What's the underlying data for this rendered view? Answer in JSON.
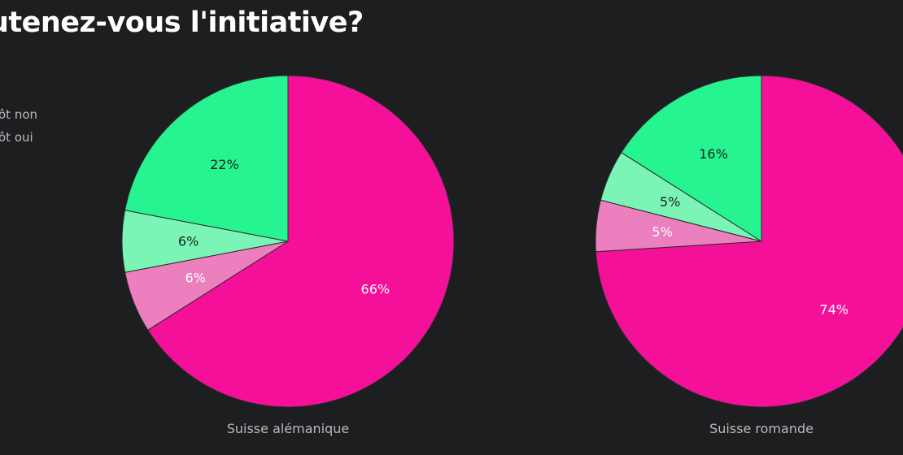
{
  "title": "utenez-vous l'initiative?",
  "legend": [
    {
      "label": "ôt non"
    },
    {
      "label": "ôt oui"
    }
  ],
  "colors": {
    "oui": "#f5109a",
    "plutot_oui": "#ec7fbd",
    "plutot_non": "#7af5b6",
    "non": "#26f491"
  },
  "chart_data": [
    {
      "type": "pie",
      "title": "Suisse alémanique",
      "slices": [
        {
          "value": 66,
          "label": "66%",
          "color": "#f5109a",
          "text_color": "#ffffff"
        },
        {
          "value": 6,
          "label": "6%",
          "color": "#ec7fbd",
          "text_color": "#ffffff"
        },
        {
          "value": 6,
          "label": "6%",
          "color": "#7af5b6",
          "text_color": "#1d1e20"
        },
        {
          "value": 22,
          "label": "22%",
          "color": "#26f491",
          "text_color": "#1d1e20"
        }
      ]
    },
    {
      "type": "pie",
      "title": "Suisse romande",
      "slices": [
        {
          "value": 74,
          "label": "74%",
          "color": "#f5109a",
          "text_color": "#ffffff"
        },
        {
          "value": 5,
          "label": "5%",
          "color": "#ec7fbd",
          "text_color": "#ffffff"
        },
        {
          "value": 5,
          "label": "5%",
          "color": "#7af5b6",
          "text_color": "#1d1e20"
        },
        {
          "value": 16,
          "label": "16%",
          "color": "#26f491",
          "text_color": "#1d1e20"
        }
      ]
    }
  ]
}
